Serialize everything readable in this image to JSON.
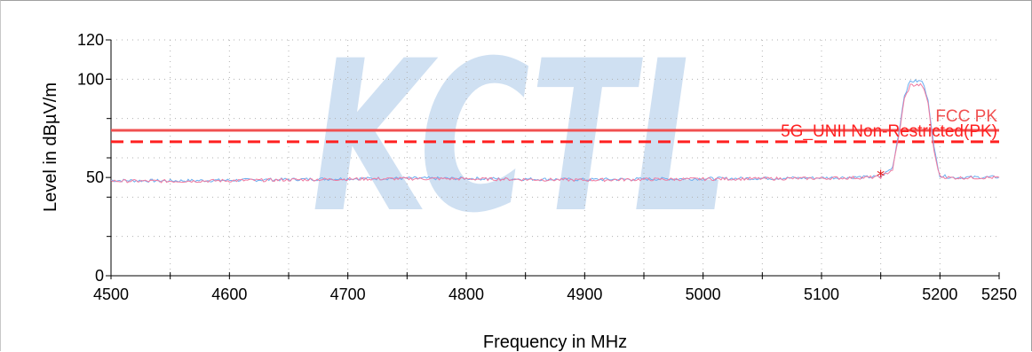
{
  "colors": {
    "limit_pk": "#ff2020",
    "limit_fcc": "#f05050",
    "trace_blue": "#6aaef0",
    "trace_pink": "#f07aa0",
    "marker": "#e01010",
    "watermark": "#cfe0f2",
    "grid": "#b0b0b0"
  },
  "chart_data": {
    "type": "line",
    "title": "",
    "xlabel": "Frequency in MHz",
    "ylabel": "Level in dBµV/m",
    "xlim": [
      4500,
      5250
    ],
    "ylim": [
      0,
      120
    ],
    "xticks": [
      4500,
      4600,
      4700,
      4800,
      4900,
      5000,
      5100,
      5200,
      5250
    ],
    "yticks": [
      0,
      50,
      100,
      120
    ],
    "grid": true,
    "watermark": "KCTL",
    "limit_lines": [
      {
        "name": "FCC PK",
        "y": 74,
        "style": "solid",
        "color": "#f05050"
      },
      {
        "name": "5G_UNII Non-Restricted(PK)",
        "y": 68.2,
        "style": "dashed",
        "color": "#ff2020"
      }
    ],
    "series": [
      {
        "color": "#6aaef0",
        "x": [
          4500,
          4550,
          4600,
          4650,
          4700,
          4750,
          4800,
          4850,
          4900,
          4950,
          5000,
          5050,
          5100,
          5140,
          5150,
          5160,
          5165,
          5170,
          5175,
          5185,
          5190,
          5195,
          5200,
          5210,
          5250
        ],
        "y": [
          48.5,
          48.3,
          48.6,
          49.0,
          49.4,
          49.6,
          49.5,
          49.2,
          48.9,
          49.2,
          49.4,
          49.6,
          49.8,
          50.2,
          50.5,
          55,
          72,
          92,
          99,
          99,
          90,
          65,
          51,
          50,
          50.2
        ]
      },
      {
        "color": "#f07aa0",
        "x": [
          4500,
          4550,
          4600,
          4650,
          4700,
          4750,
          4800,
          4850,
          4900,
          4950,
          5000,
          5050,
          5100,
          5140,
          5150,
          5160,
          5165,
          5170,
          5175,
          5185,
          5190,
          5195,
          5200,
          5210,
          5250
        ],
        "y": [
          48.2,
          48.1,
          48.4,
          48.8,
          49.2,
          49.4,
          49.3,
          49.0,
          48.7,
          49.0,
          49.2,
          49.4,
          49.6,
          50.0,
          50.3,
          54,
          70,
          90,
          97,
          97,
          88,
          63,
          50.5,
          49.8,
          50.0
        ]
      }
    ],
    "markers": [
      {
        "x": 5150,
        "y": 51.2,
        "symbol": "*"
      }
    ]
  }
}
